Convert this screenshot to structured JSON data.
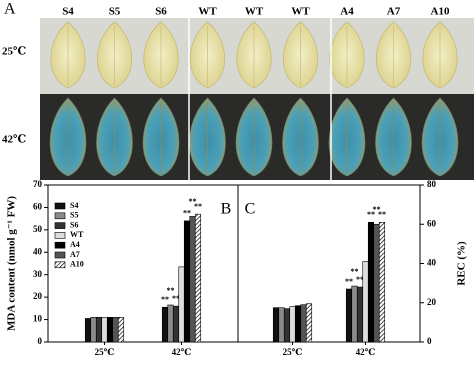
{
  "panel_a": {
    "label": "A",
    "columns": [
      "S4",
      "S5",
      "S6",
      "WT",
      "WT",
      "WT",
      "A4",
      "A7",
      "A10"
    ],
    "rows": [
      "25℃",
      "42℃"
    ]
  },
  "chart_data": [
    {
      "type": "bar",
      "panel_label": "B",
      "ylabel": "MDA content (nmol g⁻¹ FW)",
      "y_axis_side": "left",
      "legend": "upper left",
      "categories": [
        "25℃",
        "42℃"
      ],
      "ylim": [
        0,
        70
      ],
      "yticks": [
        0,
        10,
        20,
        30,
        40,
        50,
        60,
        70
      ],
      "series": [
        {
          "name": "S4",
          "color": "#111111",
          "values": [
            10.5,
            15.5
          ],
          "stars": [
            null,
            "**"
          ]
        },
        {
          "name": "S5",
          "color": "#8a8a8a",
          "values": [
            11,
            16.5
          ],
          "stars": [
            null,
            "**"
          ]
        },
        {
          "name": "S6",
          "color": "#333333",
          "values": [
            11,
            16
          ],
          "stars": [
            null,
            "**"
          ]
        },
        {
          "name": "WT",
          "color": "#dddddd",
          "values": [
            11,
            33.5
          ],
          "stars": [
            null,
            null
          ]
        },
        {
          "name": "A4",
          "color": "#000000",
          "values": [
            11,
            54
          ],
          "stars": [
            null,
            "**"
          ]
        },
        {
          "name": "A7",
          "color": "#555555",
          "values": [
            11,
            56
          ],
          "stars": [
            null,
            "**"
          ]
        },
        {
          "name": "A10",
          "color": "#ffffff",
          "hatch": true,
          "values": [
            11,
            57
          ],
          "stars": [
            null,
            "**"
          ]
        }
      ]
    },
    {
      "type": "bar",
      "panel_label": "C",
      "ylabel": "REC (%)",
      "y_axis_side": "right",
      "legend": false,
      "categories": [
        "25℃",
        "42℃"
      ],
      "ylim": [
        0,
        80
      ],
      "yticks": [
        0,
        20,
        40,
        60,
        80
      ],
      "series": [
        {
          "name": "S4",
          "color": "#111111",
          "values": [
            17.5,
            27
          ],
          "stars": [
            null,
            "**"
          ]
        },
        {
          "name": "S5",
          "color": "#8a8a8a",
          "values": [
            17.5,
            28.5
          ],
          "stars": [
            null,
            "**"
          ]
        },
        {
          "name": "S6",
          "color": "#333333",
          "values": [
            17,
            28
          ],
          "stars": [
            null,
            "**"
          ]
        },
        {
          "name": "WT",
          "color": "#dddddd",
          "values": [
            18,
            41
          ],
          "stars": [
            null,
            null
          ]
        },
        {
          "name": "A4",
          "color": "#000000",
          "values": [
            18.5,
            61
          ],
          "stars": [
            null,
            "**"
          ]
        },
        {
          "name": "A7",
          "color": "#555555",
          "values": [
            19,
            60
          ],
          "stars": [
            null,
            "**"
          ]
        },
        {
          "name": "A10",
          "color": "#ffffff",
          "hatch": true,
          "values": [
            19.5,
            61
          ],
          "stars": [
            null,
            "**"
          ]
        }
      ]
    }
  ]
}
